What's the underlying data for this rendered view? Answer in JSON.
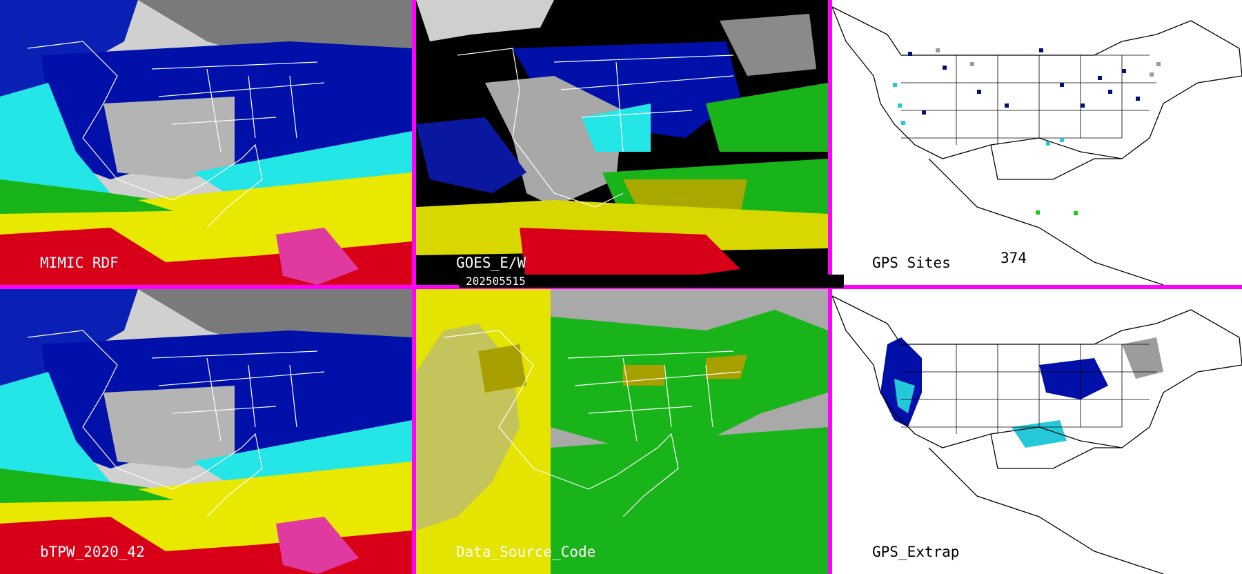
{
  "panels": {
    "mimic": {
      "label": "MIMIC RDF"
    },
    "goes": {
      "label": "GOES_E/W"
    },
    "gps_sites": {
      "label": "GPS Sites",
      "count": "374"
    },
    "btpw": {
      "label": "bTPW_2020_42"
    },
    "source": {
      "label": "Data_Source_Code"
    },
    "extrap": {
      "label": "GPS_Extrap"
    }
  },
  "date": "202505515",
  "colors": {
    "separator": "#ff00ff",
    "high_tpw": "#d80018",
    "mid_tpw": "#e8e800",
    "green": "#19b419",
    "cyan": "#24e6e6",
    "blue": "#0010a8",
    "gray": "#9c9c9c",
    "source_gray": "#a9a9a9",
    "source_yellow": "#e4e400"
  }
}
